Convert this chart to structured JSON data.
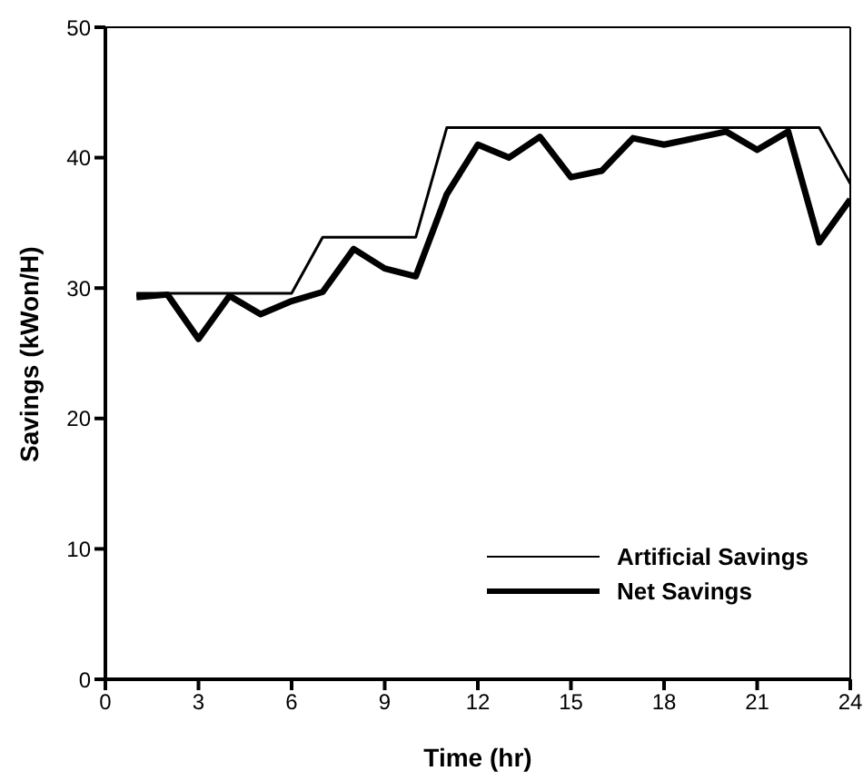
{
  "chart_data": {
    "type": "line",
    "xlabel": "Time (hr)",
    "ylabel": "Savings (kWon/H)",
    "x": [
      1,
      2,
      3,
      4,
      5,
      6,
      7,
      8,
      9,
      10,
      11,
      12,
      13,
      14,
      15,
      16,
      17,
      18,
      19,
      20,
      21,
      22,
      23,
      24
    ],
    "series": [
      {
        "name": "Artificial Savings",
        "color": "#000000",
        "values": [
          29.6,
          29.6,
          29.6,
          29.6,
          29.6,
          29.6,
          33.9,
          33.9,
          33.9,
          33.9,
          42.3,
          42.3,
          42.3,
          42.3,
          42.3,
          42.3,
          42.3,
          42.3,
          42.3,
          42.3,
          42.3,
          42.3,
          42.3,
          38.0
        ]
      },
      {
        "name": "Net Savings",
        "color": "#000000",
        "values": [
          29.3,
          29.5,
          26.1,
          29.4,
          28.0,
          29.0,
          29.7,
          33.0,
          31.5,
          30.9,
          37.2,
          41.0,
          40.0,
          41.6,
          38.5,
          39.0,
          41.5,
          41.0,
          41.5,
          42.0,
          40.6,
          42.0,
          33.5,
          36.8
        ]
      }
    ],
    "xlim": [
      0,
      24
    ],
    "xticks": [
      0,
      3,
      6,
      9,
      12,
      15,
      18,
      21,
      24
    ],
    "ylim": [
      0,
      50
    ],
    "yticks": [
      0,
      10,
      20,
      30,
      40,
      50
    ],
    "grid": false,
    "legend": "bottom right",
    "marker": "none",
    "line_style": "solid"
  }
}
